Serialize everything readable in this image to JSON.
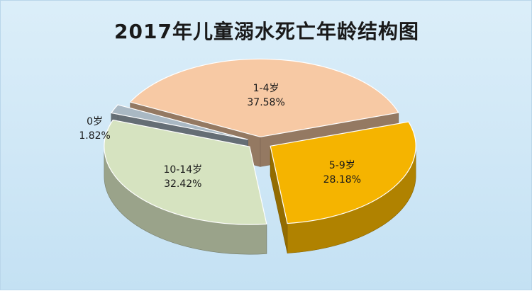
{
  "chart_data": {
    "type": "pie",
    "style": "3d-exploded",
    "title": "2017年儿童溺水死亡年龄结构图",
    "slices": [
      {
        "label": "0岁",
        "value": 1.82,
        "value_label": "1.82%",
        "color": "#a9b8c3"
      },
      {
        "label": "1-4岁",
        "value": 37.58,
        "value_label": "37.58%",
        "color": "#f7c9a4"
      },
      {
        "label": "5-9岁",
        "value": 28.18,
        "value_label": "28.18%",
        "color": "#f5b400"
      },
      {
        "label": "10-14岁",
        "value": 32.42,
        "value_label": "32.42%",
        "color": "#d6e3c0"
      }
    ],
    "legend": "none"
  }
}
